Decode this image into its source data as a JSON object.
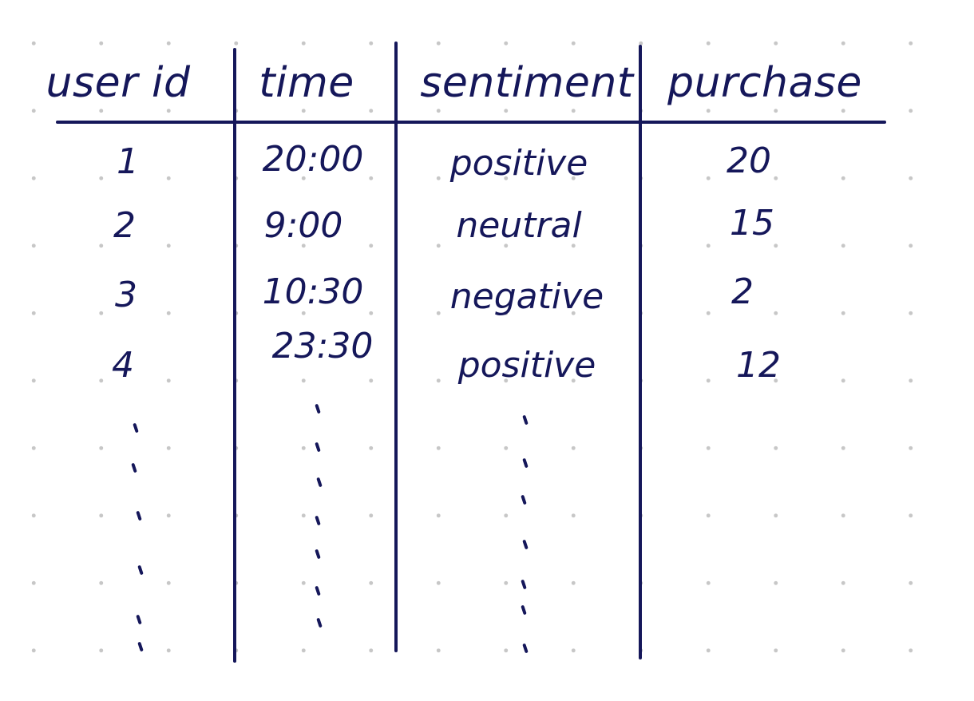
{
  "table": {
    "headers": [
      "user id",
      "time",
      "sentiment",
      "purchase"
    ],
    "rows": [
      [
        "1",
        "20:00",
        "positive",
        "20"
      ],
      [
        "2",
        "9:00",
        "neutral",
        "15"
      ],
      [
        "3",
        "10:30",
        "negative",
        "2"
      ],
      [
        "4",
        "23:30",
        "positive",
        "12"
      ]
    ]
  },
  "colors": {
    "ink": "#15175a",
    "dot": "#c7c7c7",
    "paper": "#ffffff"
  }
}
